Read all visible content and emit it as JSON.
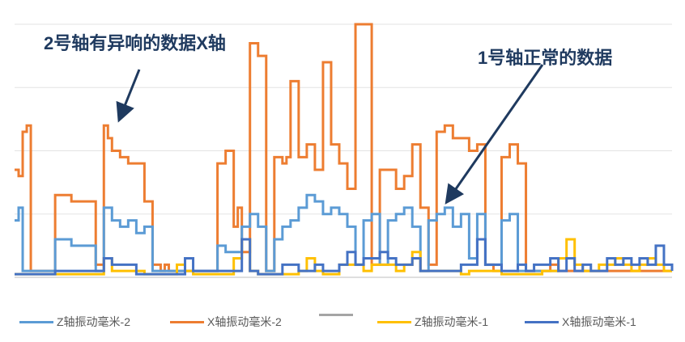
{
  "annotations": {
    "left": "2号轴有异响的数据X轴",
    "right": "1号轴正常的数据"
  },
  "legend": [
    {
      "label": "Z轴振动毫米-2",
      "color": "#5b9bd5"
    },
    {
      "label": "X轴振动毫米-2",
      "color": "#ed7d31"
    },
    {
      "label": "",
      "color": "#a5a5a5"
    },
    {
      "label": "Z轴振动毫米-1",
      "color": "#ffc000"
    },
    {
      "label": "X轴振动毫米-1",
      "color": "#4472c4"
    }
  ],
  "chart_data": {
    "type": "line",
    "title": "",
    "xlabel": "",
    "ylabel": "",
    "ylim": [
      0,
      4
    ],
    "grid": true,
    "legend_position": "bottom",
    "series": [
      {
        "name": "X轴振动毫米-2",
        "color": "#ed7d31",
        "x": [
          0,
          0.5,
          1,
          1.5,
          2,
          4,
          5,
          7,
          10,
          11,
          11.5,
          12,
          13,
          14,
          16,
          17,
          18,
          18.5,
          19,
          20,
          22,
          25,
          26,
          27,
          27.5,
          28,
          29,
          30,
          31,
          32,
          33,
          33.5,
          34,
          35,
          36,
          37,
          38,
          39,
          40,
          41,
          42,
          44,
          45,
          47,
          48,
          49,
          50,
          51,
          52,
          53,
          54,
          55,
          56,
          57,
          58,
          59,
          60,
          61,
          62,
          63,
          65,
          66,
          67,
          68,
          69,
          70,
          71,
          72,
          73,
          74,
          76,
          77,
          78,
          79,
          80,
          81
        ],
        "y": [
          1.7,
          1.6,
          2.3,
          2.4,
          0.1,
          0.1,
          1.3,
          1.2,
          0.2,
          2.4,
          2.2,
          2.0,
          1.9,
          1.8,
          1.2,
          0.2,
          0.1,
          0.2,
          0.1,
          0.1,
          0.1,
          1.8,
          2.0,
          0.8,
          1.1,
          0.4,
          3.7,
          3.5,
          0.1,
          1.9,
          1.8,
          1.9,
          3.1,
          1.9,
          2.1,
          1.7,
          3.4,
          2.1,
          1.8,
          1.4,
          4.0,
          0.2,
          1.7,
          1.4,
          1.6,
          2.1,
          1.1,
          0.2,
          2.3,
          2.4,
          2.2,
          2.2,
          2.0,
          2.1,
          0.2,
          0.1,
          1.9,
          2.1,
          1.8,
          0.1,
          0.1,
          0.2,
          0.1,
          0.1,
          0.1,
          0.1,
          0.1,
          0.1,
          0.1,
          0.1,
          0.1,
          0.1,
          0.1,
          0.1,
          0.1,
          0.1
        ]
      },
      {
        "name": "Z轴振动毫米-2",
        "color": "#5b9bd5",
        "x": [
          0,
          0.5,
          1,
          2,
          4,
          5,
          7,
          10,
          11,
          12,
          13,
          14,
          15,
          16,
          17,
          18,
          20,
          25,
          26,
          28,
          29,
          30,
          31,
          32,
          33,
          34,
          35,
          36,
          37,
          38,
          39,
          40,
          41,
          42,
          43,
          44,
          45,
          46,
          47,
          48,
          49,
          50,
          51,
          52,
          53,
          54,
          55,
          56,
          57,
          58,
          59,
          60,
          61,
          62,
          63,
          64,
          65,
          66,
          67
        ],
        "y": [
          0.9,
          1.1,
          0.1,
          0.1,
          0.1,
          0.6,
          0.5,
          0.1,
          1.1,
          0.9,
          0.8,
          0.9,
          0.7,
          0.8,
          0.1,
          0.1,
          0.1,
          0.5,
          0.4,
          0.8,
          1.0,
          0.8,
          0.1,
          0.6,
          0.8,
          0.9,
          1.1,
          1.3,
          1.2,
          1.0,
          1.1,
          1.0,
          0.8,
          0.2,
          0.9,
          1.0,
          0.2,
          0.9,
          1.0,
          1.1,
          0.8,
          0.1,
          0.9,
          1.0,
          1.1,
          0.8,
          1.0,
          0.3,
          1.0,
          0.2,
          0.2,
          0.9,
          1.0,
          0.1,
          0.1,
          0.1,
          0.1,
          0.1,
          0.1
        ]
      },
      {
        "name": "Z轴振动毫米-1",
        "color": "#ffc000",
        "x": [
          0,
          10,
          11,
          12,
          16,
          20,
          21,
          22,
          27,
          28,
          29,
          30,
          35,
          36,
          37,
          38,
          40,
          41,
          42,
          43,
          44,
          45,
          46,
          47,
          48,
          49,
          50,
          55,
          56,
          60,
          65,
          66,
          67,
          68,
          69,
          70,
          71,
          72,
          73,
          74,
          75,
          76,
          77,
          78,
          79,
          80,
          81
        ],
        "y": [
          0.05,
          0.05,
          0.3,
          0.1,
          0.05,
          0.2,
          0.1,
          0.05,
          0.3,
          0.6,
          0.1,
          0.05,
          0.1,
          0.3,
          0.1,
          0.05,
          0.2,
          0.2,
          0.2,
          0.1,
          0.2,
          0.2,
          0.2,
          0.1,
          0.2,
          0.4,
          0.1,
          0.05,
          0.1,
          0.05,
          0.1,
          0.1,
          0.3,
          0.6,
          0.2,
          0.1,
          0.1,
          0.2,
          0.2,
          0.3,
          0.2,
          0.1,
          0.2,
          0.3,
          0.2,
          0.1,
          0.1
        ]
      },
      {
        "name": "X轴振动毫米-1",
        "color": "#4472c4",
        "x": [
          0,
          5,
          10,
          11,
          12,
          15,
          20,
          21,
          22,
          25,
          28,
          29,
          30,
          33,
          35,
          36,
          37,
          38,
          40,
          41,
          42,
          43,
          44,
          45,
          46,
          47,
          48,
          49,
          50,
          55,
          56,
          57,
          58,
          60,
          62,
          63,
          64,
          65,
          66,
          67,
          68,
          69,
          70,
          71,
          72,
          73,
          74,
          75,
          76,
          77,
          78,
          79,
          80,
          81
        ],
        "y": [
          0.05,
          0.1,
          0.1,
          0.3,
          0.2,
          0.05,
          0.05,
          0.3,
          0.1,
          0.1,
          0.6,
          0.1,
          0.05,
          0.2,
          0.1,
          0.1,
          0.2,
          0.1,
          0.2,
          0.4,
          0.2,
          0.3,
          0.3,
          0.4,
          0.3,
          0.2,
          0.2,
          0.3,
          0.1,
          0.2,
          0.2,
          0.6,
          0.2,
          0.1,
          0.2,
          0.1,
          0.2,
          0.2,
          0.3,
          0.1,
          0.3,
          0.1,
          0.2,
          0.1,
          0.1,
          0.3,
          0.2,
          0.3,
          0.2,
          0.3,
          0.2,
          0.5,
          0.2,
          0.1
        ]
      }
    ]
  }
}
